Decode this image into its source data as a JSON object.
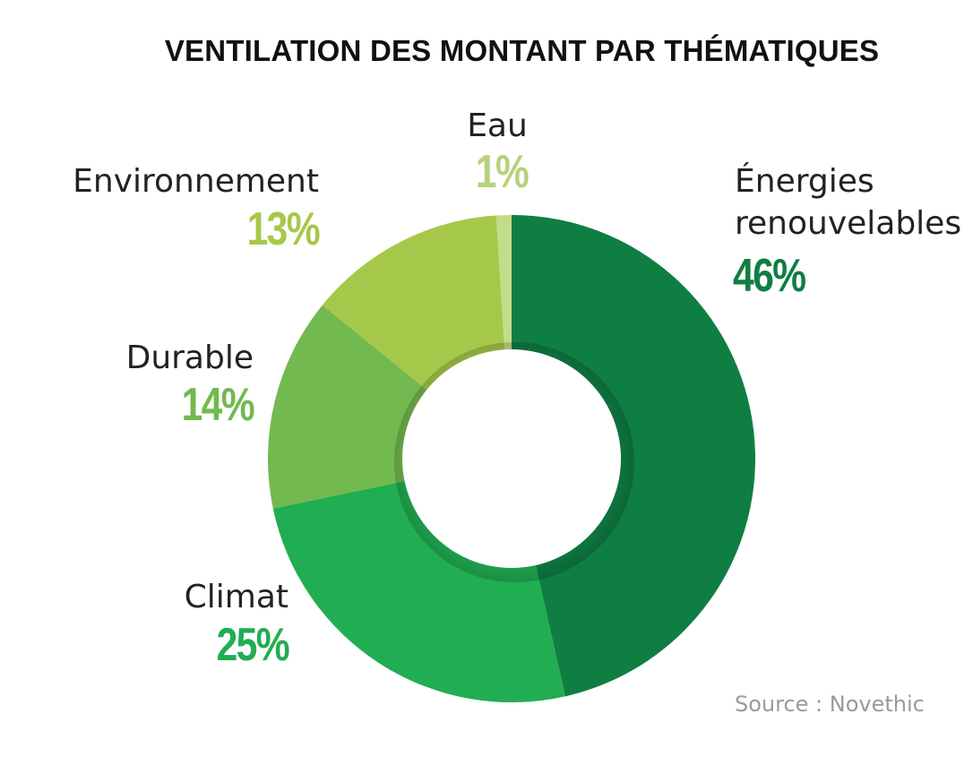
{
  "chart_data": {
    "type": "pie",
    "title": "VENTILATION DES MONTANT PAR THÉMATIQUES",
    "categories": [
      "Énergies renouvelables",
      "Climat",
      "Durable",
      "Environnement",
      "Eau"
    ],
    "values": [
      46,
      25,
      14,
      13,
      1
    ],
    "value_labels": [
      "46%",
      "25%",
      "14%",
      "13%",
      "1%"
    ],
    "colors": [
      "#0f7e43",
      "#21ad52",
      "#72b94f",
      "#a6c84a",
      "#c2dc8a"
    ],
    "donut": true,
    "source": "Source : Novethic"
  },
  "labels": {
    "energies_line1": "Énergies",
    "energies_line2": "renouvelables",
    "climat": "Climat",
    "durable": "Durable",
    "environnement": "Environnement",
    "eau": "Eau"
  }
}
